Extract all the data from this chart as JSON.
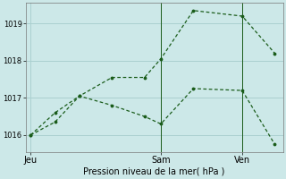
{
  "title": "",
  "xlabel": "Pression niveau de la mer( hPa )",
  "ylabel": "",
  "background_color": "#cce8e8",
  "grid_color": "#aad0d0",
  "line_color": "#1a5c1a",
  "x_ticks_labels": [
    "Jeu",
    "Sam",
    "Ven"
  ],
  "x_ticks_positions": [
    0,
    8,
    13
  ],
  "ylim": [
    1015.55,
    1019.55
  ],
  "yticks": [
    1016,
    1017,
    1018,
    1019
  ],
  "series1_x": [
    0,
    1.5,
    3,
    5,
    7,
    8,
    10,
    13,
    15
  ],
  "series1_y": [
    1016.0,
    1016.35,
    1017.05,
    1017.55,
    1017.55,
    1018.05,
    1019.35,
    1019.2,
    1018.2
  ],
  "series2_x": [
    0,
    1.5,
    3,
    5,
    7,
    8,
    10,
    13,
    15
  ],
  "series2_y": [
    1016.0,
    1016.6,
    1017.05,
    1016.8,
    1016.5,
    1016.3,
    1017.25,
    1017.2,
    1015.75
  ],
  "vlines_x": [
    8,
    13
  ],
  "fig_width": 3.2,
  "fig_height": 2.0,
  "dpi": 100
}
